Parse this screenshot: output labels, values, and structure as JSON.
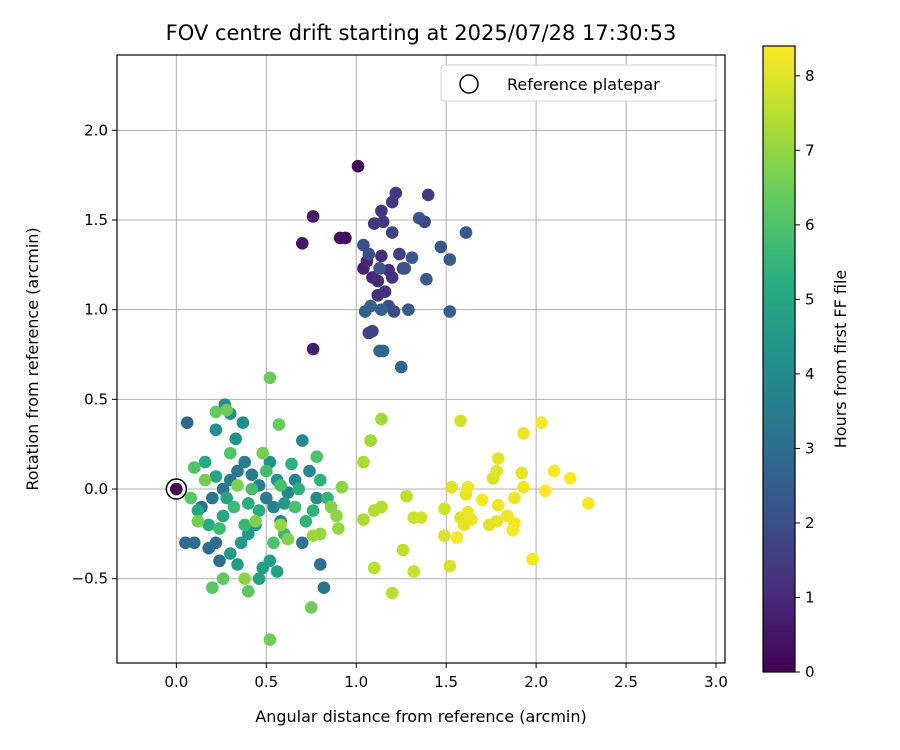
{
  "chart_data": {
    "type": "scatter",
    "title": "FOV centre drift starting at 2025/07/28 17:30:53",
    "xlabel": "Angular distance from reference (arcmin)",
    "ylabel": "Rotation from reference (arcmin)",
    "xlim": [
      -0.33,
      3.05
    ],
    "ylim": [
      -0.97,
      2.42
    ],
    "xticks": [
      "0.0",
      "0.5",
      "1.0",
      "1.5",
      "2.0",
      "2.5",
      "3.0"
    ],
    "yticks": [
      "−0.5",
      "0.0",
      "0.5",
      "1.0",
      "1.5",
      "2.0"
    ],
    "grid": true,
    "legend": {
      "position": "top-right",
      "entries": [
        "Reference platepar"
      ]
    },
    "colorbar": {
      "label": "Hours from first FF file",
      "min": 0,
      "max": 8.4,
      "ticks": [
        "0",
        "1",
        "2",
        "3",
        "4",
        "5",
        "6",
        "7",
        "8"
      ],
      "colormap": "viridis"
    },
    "reference_point": {
      "x": 0.0,
      "y": 0.0,
      "hours": 0.0
    },
    "points": [
      {
        "x": 1.01,
        "y": 1.8,
        "h": 0.1
      },
      {
        "x": 0.94,
        "y": 1.4,
        "h": 0.2
      },
      {
        "x": 0.91,
        "y": 1.4,
        "h": 0.3
      },
      {
        "x": 0.7,
        "y": 1.37,
        "h": 0.5
      },
      {
        "x": 0.76,
        "y": 1.52,
        "h": 0.6
      },
      {
        "x": 0.76,
        "y": 0.78,
        "h": 0.7
      },
      {
        "x": 1.04,
        "y": 1.23,
        "h": 0.8
      },
      {
        "x": 1.09,
        "y": 1.18,
        "h": 0.9
      },
      {
        "x": 1.06,
        "y": 1.27,
        "h": 0.9
      },
      {
        "x": 1.12,
        "y": 1.16,
        "h": 1.0
      },
      {
        "x": 1.14,
        "y": 1.3,
        "h": 1.0
      },
      {
        "x": 1.18,
        "y": 1.22,
        "h": 1.1
      },
      {
        "x": 1.12,
        "y": 1.08,
        "h": 1.1
      },
      {
        "x": 1.16,
        "y": 1.1,
        "h": 1.2
      },
      {
        "x": 1.2,
        "y": 1.18,
        "h": 1.2
      },
      {
        "x": 1.1,
        "y": 1.48,
        "h": 1.3
      },
      {
        "x": 1.14,
        "y": 1.55,
        "h": 1.3
      },
      {
        "x": 1.15,
        "y": 1.49,
        "h": 1.4
      },
      {
        "x": 1.2,
        "y": 1.6,
        "h": 1.4
      },
      {
        "x": 1.22,
        "y": 1.65,
        "h": 1.5
      },
      {
        "x": 1.4,
        "y": 1.64,
        "h": 1.5
      },
      {
        "x": 1.38,
        "y": 1.49,
        "h": 1.6
      },
      {
        "x": 1.24,
        "y": 1.31,
        "h": 1.6
      },
      {
        "x": 1.26,
        "y": 1.23,
        "h": 1.7
      },
      {
        "x": 1.2,
        "y": 1.43,
        "h": 1.7
      },
      {
        "x": 1.07,
        "y": 0.87,
        "h": 1.8
      },
      {
        "x": 1.09,
        "y": 0.88,
        "h": 1.8
      },
      {
        "x": 1.18,
        "y": 1.02,
        "h": 1.9
      },
      {
        "x": 1.21,
        "y": 0.99,
        "h": 1.9
      },
      {
        "x": 1.04,
        "y": 1.36,
        "h": 2.0
      },
      {
        "x": 1.07,
        "y": 1.31,
        "h": 2.0
      },
      {
        "x": 1.13,
        "y": 1.23,
        "h": 2.1
      },
      {
        "x": 1.27,
        "y": 1.23,
        "h": 2.1
      },
      {
        "x": 1.31,
        "y": 1.29,
        "h": 2.2
      },
      {
        "x": 1.35,
        "y": 1.51,
        "h": 2.2
      },
      {
        "x": 1.47,
        "y": 1.35,
        "h": 2.3
      },
      {
        "x": 1.61,
        "y": 1.43,
        "h": 2.3
      },
      {
        "x": 1.52,
        "y": 1.28,
        "h": 2.4
      },
      {
        "x": 1.39,
        "y": 1.17,
        "h": 2.4
      },
      {
        "x": 1.29,
        "y": 1.0,
        "h": 2.5
      },
      {
        "x": 1.52,
        "y": 0.99,
        "h": 2.5
      },
      {
        "x": 1.14,
        "y": 1.0,
        "h": 2.6
      },
      {
        "x": 1.05,
        "y": 0.99,
        "h": 2.6
      },
      {
        "x": 1.08,
        "y": 1.02,
        "h": 2.7
      },
      {
        "x": 1.13,
        "y": 0.77,
        "h": 2.7
      },
      {
        "x": 1.15,
        "y": 0.77,
        "h": 2.8
      },
      {
        "x": 1.25,
        "y": 0.68,
        "h": 2.8
      },
      {
        "x": 0.06,
        "y": 0.37,
        "h": 2.8
      },
      {
        "x": 0.05,
        "y": -0.3,
        "h": 2.9
      },
      {
        "x": 0.1,
        "y": -0.3,
        "h": 3.0
      },
      {
        "x": 0.18,
        "y": -0.33,
        "h": 3.1
      },
      {
        "x": 0.22,
        "y": -0.3,
        "h": 3.0
      },
      {
        "x": 0.24,
        "y": -0.4,
        "h": 3.0
      },
      {
        "x": 0.8,
        "y": -0.42,
        "h": 3.1
      },
      {
        "x": 0.82,
        "y": -0.55,
        "h": 3.2
      },
      {
        "x": 0.7,
        "y": -0.3,
        "h": 3.3
      },
      {
        "x": 0.14,
        "y": -0.1,
        "h": 3.2
      },
      {
        "x": 0.2,
        "y": -0.05,
        "h": 3.3
      },
      {
        "x": 0.26,
        "y": 0.0,
        "h": 3.3
      },
      {
        "x": 0.3,
        "y": 0.05,
        "h": 3.4
      },
      {
        "x": 0.34,
        "y": 0.1,
        "h": 3.4
      },
      {
        "x": 0.38,
        "y": 0.15,
        "h": 3.5
      },
      {
        "x": 0.42,
        "y": 0.08,
        "h": 3.5
      },
      {
        "x": 0.46,
        "y": 0.02,
        "h": 3.6
      },
      {
        "x": 0.5,
        "y": -0.05,
        "h": 3.6
      },
      {
        "x": 0.54,
        "y": -0.1,
        "h": 3.7
      },
      {
        "x": 0.58,
        "y": -0.18,
        "h": 3.7
      },
      {
        "x": 0.62,
        "y": -0.02,
        "h": 3.8
      },
      {
        "x": 0.66,
        "y": 0.05,
        "h": 3.8
      },
      {
        "x": 0.7,
        "y": 0.27,
        "h": 3.9
      },
      {
        "x": 0.74,
        "y": 0.1,
        "h": 3.9
      },
      {
        "x": 0.78,
        "y": -0.05,
        "h": 4.0
      },
      {
        "x": 0.27,
        "y": 0.47,
        "h": 4.0
      },
      {
        "x": 0.3,
        "y": 0.42,
        "h": 4.1
      },
      {
        "x": 0.37,
        "y": 0.37,
        "h": 4.1
      },
      {
        "x": 0.33,
        "y": 0.28,
        "h": 4.2
      },
      {
        "x": 0.22,
        "y": 0.33,
        "h": 4.2
      },
      {
        "x": 0.52,
        "y": 0.15,
        "h": 4.3
      },
      {
        "x": 0.56,
        "y": 0.05,
        "h": 4.3
      },
      {
        "x": 0.6,
        "y": -0.08,
        "h": 4.4
      },
      {
        "x": 0.44,
        "y": -0.2,
        "h": 4.4
      },
      {
        "x": 0.4,
        "y": -0.25,
        "h": 4.5
      },
      {
        "x": 0.36,
        "y": -0.3,
        "h": 4.5
      },
      {
        "x": 0.3,
        "y": -0.36,
        "h": 4.6
      },
      {
        "x": 0.34,
        "y": -0.42,
        "h": 4.6
      },
      {
        "x": 0.48,
        "y": -0.44,
        "h": 4.7
      },
      {
        "x": 0.52,
        "y": -0.4,
        "h": 4.7
      },
      {
        "x": 0.56,
        "y": -0.46,
        "h": 4.8
      },
      {
        "x": 0.46,
        "y": -0.5,
        "h": 4.8
      },
      {
        "x": 0.28,
        "y": -0.05,
        "h": 4.9
      },
      {
        "x": 0.22,
        "y": 0.07,
        "h": 4.9
      },
      {
        "x": 0.16,
        "y": 0.15,
        "h": 5.0
      },
      {
        "x": 0.12,
        "y": -0.12,
        "h": 5.0
      },
      {
        "x": 0.18,
        "y": -0.2,
        "h": 5.1
      },
      {
        "x": 0.26,
        "y": -0.15,
        "h": 5.1
      },
      {
        "x": 0.4,
        "y": -0.08,
        "h": 5.2
      },
      {
        "x": 0.46,
        "y": -0.12,
        "h": 5.2
      },
      {
        "x": 0.64,
        "y": 0.14,
        "h": 5.3
      },
      {
        "x": 0.68,
        "y": 0.0,
        "h": 5.3
      },
      {
        "x": 0.76,
        "y": -0.12,
        "h": 5.4
      },
      {
        "x": 0.8,
        "y": 0.05,
        "h": 5.4
      },
      {
        "x": 0.84,
        "y": -0.05,
        "h": 5.5
      },
      {
        "x": 0.72,
        "y": -0.18,
        "h": 5.5
      },
      {
        "x": 0.6,
        "y": -0.25,
        "h": 5.6
      },
      {
        "x": 0.38,
        "y": -0.2,
        "h": 5.6
      },
      {
        "x": 0.32,
        "y": -0.1,
        "h": 5.7
      },
      {
        "x": 0.24,
        "y": -0.22,
        "h": 5.7
      },
      {
        "x": 0.42,
        "y": 0.0,
        "h": 5.8
      },
      {
        "x": 0.5,
        "y": 0.1,
        "h": 5.8
      },
      {
        "x": 0.58,
        "y": 0.02,
        "h": 5.9
      },
      {
        "x": 0.66,
        "y": -0.1,
        "h": 5.9
      },
      {
        "x": 0.78,
        "y": 0.18,
        "h": 6.0
      },
      {
        "x": 0.54,
        "y": -0.3,
        "h": 6.0
      },
      {
        "x": 0.3,
        "y": 0.2,
        "h": 6.1
      },
      {
        "x": 0.1,
        "y": 0.12,
        "h": 6.1
      },
      {
        "x": 0.08,
        "y": -0.05,
        "h": 6.2
      },
      {
        "x": 0.2,
        "y": -0.55,
        "h": 6.2
      },
      {
        "x": 0.26,
        "y": -0.5,
        "h": 6.3
      },
      {
        "x": 0.4,
        "y": -0.57,
        "h": 6.3
      },
      {
        "x": 0.52,
        "y": 0.62,
        "h": 6.4
      },
      {
        "x": 0.57,
        "y": 0.36,
        "h": 6.4
      },
      {
        "x": 0.75,
        "y": -0.66,
        "h": 6.5
      },
      {
        "x": 0.52,
        "y": -0.84,
        "h": 6.5
      },
      {
        "x": 0.22,
        "y": 0.43,
        "h": 6.4
      },
      {
        "x": 0.28,
        "y": 0.44,
        "h": 6.5
      },
      {
        "x": 0.12,
        "y": -0.18,
        "h": 6.6
      },
      {
        "x": 0.16,
        "y": 0.05,
        "h": 6.6
      },
      {
        "x": 0.34,
        "y": 0.02,
        "h": 6.7
      },
      {
        "x": 0.44,
        "y": -0.18,
        "h": 6.7
      },
      {
        "x": 0.62,
        "y": -0.28,
        "h": 6.8
      },
      {
        "x": 0.48,
        "y": 0.2,
        "h": 6.6
      },
      {
        "x": 0.86,
        "y": -0.1,
        "h": 6.8
      },
      {
        "x": 0.92,
        "y": 0.01,
        "h": 6.9
      },
      {
        "x": 0.89,
        "y": -0.15,
        "h": 6.9
      },
      {
        "x": 0.9,
        "y": -0.22,
        "h": 7.0
      },
      {
        "x": 0.8,
        "y": -0.25,
        "h": 7.0
      },
      {
        "x": 0.76,
        "y": -0.26,
        "h": 7.1
      },
      {
        "x": 0.38,
        "y": -0.5,
        "h": 6.9
      },
      {
        "x": 0.58,
        "y": -0.2,
        "h": 7.0
      },
      {
        "x": 1.08,
        "y": 0.27,
        "h": 7.2
      },
      {
        "x": 1.14,
        "y": 0.39,
        "h": 7.2
      },
      {
        "x": 1.04,
        "y": 0.15,
        "h": 7.3
      },
      {
        "x": 1.04,
        "y": -0.17,
        "h": 7.3
      },
      {
        "x": 1.1,
        "y": -0.12,
        "h": 7.4
      },
      {
        "x": 1.14,
        "y": -0.1,
        "h": 7.4
      },
      {
        "x": 1.1,
        "y": -0.44,
        "h": 7.5
      },
      {
        "x": 1.2,
        "y": -0.58,
        "h": 7.5
      },
      {
        "x": 1.26,
        "y": -0.34,
        "h": 7.6
      },
      {
        "x": 1.28,
        "y": -0.04,
        "h": 7.6
      },
      {
        "x": 1.32,
        "y": -0.16,
        "h": 7.7
      },
      {
        "x": 1.32,
        "y": -0.46,
        "h": 7.7
      },
      {
        "x": 1.36,
        "y": -0.16,
        "h": 7.8
      },
      {
        "x": 1.49,
        "y": -0.11,
        "h": 7.8
      },
      {
        "x": 1.49,
        "y": -0.26,
        "h": 7.9
      },
      {
        "x": 1.52,
        "y": -0.43,
        "h": 7.9
      },
      {
        "x": 1.53,
        "y": 0.01,
        "h": 8.0
      },
      {
        "x": 1.58,
        "y": 0.38,
        "h": 7.8
      },
      {
        "x": 1.58,
        "y": -0.16,
        "h": 8.0
      },
      {
        "x": 1.6,
        "y": -0.2,
        "h": 8.1
      },
      {
        "x": 1.61,
        "y": -0.03,
        "h": 8.1
      },
      {
        "x": 1.62,
        "y": 0.01,
        "h": 8.2
      },
      {
        "x": 1.62,
        "y": -0.13,
        "h": 8.2
      },
      {
        "x": 1.64,
        "y": -0.17,
        "h": 8.2
      },
      {
        "x": 1.56,
        "y": -0.27,
        "h": 8.3
      },
      {
        "x": 1.74,
        "y": -0.2,
        "h": 8.0
      },
      {
        "x": 1.76,
        "y": 0.06,
        "h": 7.9
      },
      {
        "x": 1.78,
        "y": 0.1,
        "h": 8.0
      },
      {
        "x": 1.79,
        "y": 0.17,
        "h": 8.1
      },
      {
        "x": 1.78,
        "y": -0.18,
        "h": 8.1
      },
      {
        "x": 1.79,
        "y": -0.09,
        "h": 8.2
      },
      {
        "x": 1.84,
        "y": -0.15,
        "h": 8.2
      },
      {
        "x": 1.87,
        "y": -0.23,
        "h": 8.3
      },
      {
        "x": 1.88,
        "y": -0.19,
        "h": 8.3
      },
      {
        "x": 1.88,
        "y": -0.05,
        "h": 8.2
      },
      {
        "x": 1.92,
        "y": 0.09,
        "h": 8.1
      },
      {
        "x": 1.93,
        "y": 0.01,
        "h": 8.2
      },
      {
        "x": 1.93,
        "y": 0.31,
        "h": 8.2
      },
      {
        "x": 1.98,
        "y": -0.39,
        "h": 8.3
      },
      {
        "x": 2.03,
        "y": 0.37,
        "h": 8.3
      },
      {
        "x": 2.05,
        "y": -0.01,
        "h": 8.4
      },
      {
        "x": 2.1,
        "y": 0.1,
        "h": 8.3
      },
      {
        "x": 2.19,
        "y": 0.06,
        "h": 8.4
      },
      {
        "x": 2.29,
        "y": -0.08,
        "h": 8.4
      },
      {
        "x": 1.7,
        "y": -0.06,
        "h": 8.3
      }
    ]
  }
}
